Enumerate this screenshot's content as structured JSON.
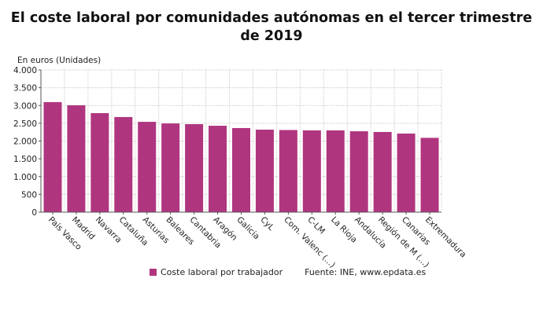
{
  "chart_data": {
    "type": "bar",
    "title": "El coste laboral por comunidades autónomas en el tercer trimestre de 2019",
    "ylabel": "En euros (Unidades)",
    "xlabel": "",
    "ylim": [
      0,
      4000
    ],
    "yticks": [
      0,
      500,
      1000,
      1500,
      2000,
      2500,
      3000,
      3500,
      4000
    ],
    "ytick_labels": [
      "0",
      "500",
      "1.000",
      "1.500",
      "2.000",
      "2.500",
      "3.000",
      "3.500",
      "4.000"
    ],
    "grid": true,
    "categories": [
      "País Vasco",
      "Madrid",
      "Navarra",
      "Cataluña",
      "Asturias",
      "Baleares",
      "Cantabria",
      "Aragón",
      "Galicia",
      "CyL",
      "Com. Valenc (...)",
      "C-LM",
      "La Rioja",
      "Andalucía",
      "Región de M (...)",
      "Canarias",
      "Extremadura"
    ],
    "series": [
      {
        "name": "Coste laboral por trabajador",
        "color": "#b0357f",
        "values": [
          3095,
          3005,
          2785,
          2675,
          2540,
          2495,
          2475,
          2430,
          2365,
          2320,
          2310,
          2300,
          2300,
          2275,
          2255,
          2210,
          2090
        ]
      }
    ],
    "legend_position": "bottom",
    "source": "Fuente: INE, www.epdata.es"
  }
}
